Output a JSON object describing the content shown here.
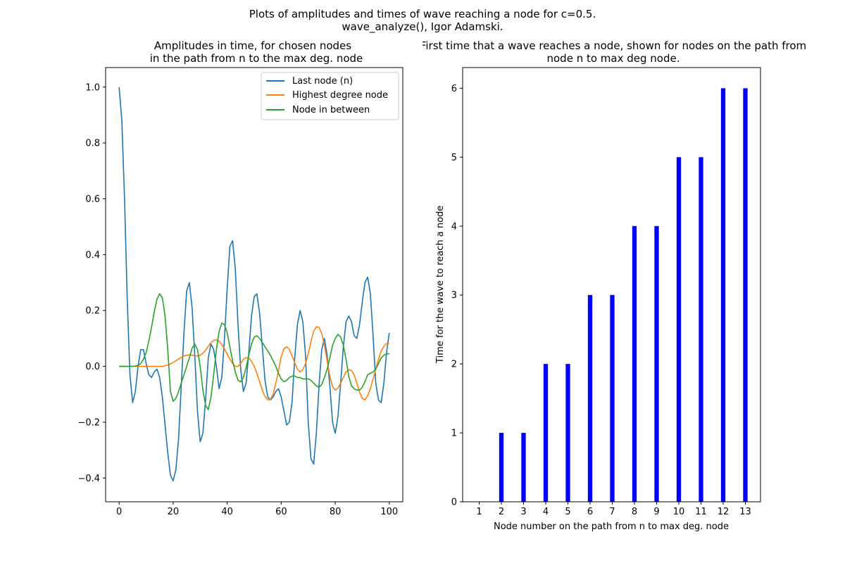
{
  "figure": {
    "suptitle_line1": "Plots of amplitudes and times of wave reaching a node for c=0.5.",
    "suptitle_line2": "wave_analyze(), Igor Adamski."
  },
  "chart_data": [
    {
      "type": "line",
      "title_line1": "Amplitudes in time, for chosen nodes",
      "title_line2": "in the path from n to the max deg. node",
      "xlabel": "",
      "ylabel": "",
      "xlim": [
        -5,
        105
      ],
      "ylim": [
        -0.485,
        1.07
      ],
      "xticks": [
        0,
        20,
        40,
        60,
        80,
        100
      ],
      "yticks": [
        -0.4,
        -0.2,
        0.0,
        0.2,
        0.4,
        0.6,
        0.8,
        1.0
      ],
      "ytick_labels": [
        "−0.4",
        "−0.2",
        "0.0",
        "0.2",
        "0.4",
        "0.6",
        "0.8",
        "1.0"
      ],
      "legend_position": "top-right",
      "series": [
        {
          "name": "Last node (n)",
          "color": "#1f77b4",
          "x": [
            0,
            1,
            2,
            3,
            4,
            5,
            6,
            7,
            8,
            9,
            10,
            11,
            12,
            13,
            14,
            15,
            16,
            17,
            18,
            19,
            20,
            21,
            22,
            23,
            24,
            25,
            26,
            27,
            28,
            29,
            30,
            31,
            32,
            33,
            34,
            35,
            36,
            37,
            38,
            39,
            40,
            41,
            42,
            43,
            44,
            45,
            46,
            47,
            48,
            49,
            50,
            51,
            52,
            53,
            54,
            55,
            56,
            57,
            58,
            59,
            60,
            61,
            62,
            63,
            64,
            65,
            66,
            67,
            68,
            69,
            70,
            71,
            72,
            73,
            74,
            75,
            76,
            77,
            78,
            79,
            80,
            81,
            82,
            83,
            84,
            85,
            86,
            87,
            88,
            89,
            90,
            91,
            92,
            93,
            94,
            95,
            96,
            97,
            98,
            99,
            100
          ],
          "values": [
            1.0,
            0.88,
            0.6,
            0.24,
            -0.03,
            -0.13,
            -0.09,
            0.0,
            0.06,
            0.06,
            0.01,
            -0.03,
            -0.04,
            -0.02,
            -0.01,
            -0.04,
            -0.11,
            -0.21,
            -0.31,
            -0.39,
            -0.41,
            -0.37,
            -0.26,
            -0.07,
            0.12,
            0.27,
            0.3,
            0.21,
            0.04,
            -0.16,
            -0.27,
            -0.24,
            -0.12,
            0.03,
            0.08,
            0.06,
            0.0,
            -0.08,
            -0.04,
            0.1,
            0.28,
            0.43,
            0.45,
            0.35,
            0.15,
            -0.01,
            -0.09,
            -0.06,
            0.05,
            0.18,
            0.25,
            0.26,
            0.19,
            0.07,
            -0.05,
            -0.11,
            -0.12,
            -0.11,
            -0.09,
            -0.08,
            -0.11,
            -0.16,
            -0.21,
            -0.2,
            -0.13,
            0.03,
            0.15,
            0.2,
            0.16,
            0.04,
            -0.2,
            -0.33,
            -0.35,
            -0.24,
            -0.07,
            0.06,
            0.1,
            0.04,
            -0.07,
            -0.2,
            -0.24,
            -0.18,
            -0.06,
            0.07,
            0.16,
            0.18,
            0.16,
            0.11,
            0.1,
            0.15,
            0.23,
            0.3,
            0.32,
            0.26,
            0.11,
            -0.06,
            -0.12,
            -0.13,
            -0.06,
            0.05,
            0.12
          ]
        },
        {
          "name": "Highest degree node",
          "color": "#ff7f0e",
          "x": [
            0,
            1,
            2,
            3,
            4,
            5,
            6,
            7,
            8,
            9,
            10,
            11,
            12,
            13,
            14,
            15,
            16,
            17,
            18,
            19,
            20,
            21,
            22,
            23,
            24,
            25,
            26,
            27,
            28,
            29,
            30,
            31,
            32,
            33,
            34,
            35,
            36,
            37,
            38,
            39,
            40,
            41,
            42,
            43,
            44,
            45,
            46,
            47,
            48,
            49,
            50,
            51,
            52,
            53,
            54,
            55,
            56,
            57,
            58,
            59,
            60,
            61,
            62,
            63,
            64,
            65,
            66,
            67,
            68,
            69,
            70,
            71,
            72,
            73,
            74,
            75,
            76,
            77,
            78,
            79,
            80,
            81,
            82,
            83,
            84,
            85,
            86,
            87,
            88,
            89,
            90,
            91,
            92,
            93,
            94,
            95,
            96,
            97,
            98,
            99,
            100
          ],
          "values": [
            0.0,
            0.0,
            0.0,
            0.0,
            0.0,
            0.0,
            0.0,
            0.0,
            0.0,
            0.0,
            0.0,
            0.0,
            0.0,
            0.0,
            0.0,
            0.0,
            0.0,
            0.002,
            0.005,
            0.009,
            0.014,
            0.02,
            0.026,
            0.032,
            0.037,
            0.04,
            0.041,
            0.04,
            0.038,
            0.037,
            0.04,
            0.047,
            0.058,
            0.072,
            0.085,
            0.093,
            0.095,
            0.09,
            0.078,
            0.062,
            0.044,
            0.026,
            0.01,
            0.0,
            0.0,
            0.01,
            0.025,
            0.032,
            0.03,
            0.018,
            0.0,
            -0.025,
            -0.055,
            -0.085,
            -0.108,
            -0.12,
            -0.118,
            -0.1,
            -0.06,
            -0.015,
            0.035,
            0.063,
            0.07,
            0.06,
            0.038,
            0.013,
            -0.01,
            -0.02,
            -0.012,
            0.01,
            0.045,
            0.088,
            0.125,
            0.142,
            0.14,
            0.118,
            0.075,
            0.02,
            -0.035,
            -0.072,
            -0.085,
            -0.078,
            -0.06,
            -0.04,
            -0.02,
            -0.012,
            -0.015,
            -0.03,
            -0.06,
            -0.092,
            -0.115,
            -0.12,
            -0.105,
            -0.08,
            -0.045,
            -0.01,
            0.025,
            0.055,
            0.072,
            0.082,
            0.082
          ]
        },
        {
          "name": "Node in between",
          "color": "#2ca02c",
          "x": [
            0,
            1,
            2,
            3,
            4,
            5,
            6,
            7,
            8,
            9,
            10,
            11,
            12,
            13,
            14,
            15,
            16,
            17,
            18,
            19,
            20,
            21,
            22,
            23,
            24,
            25,
            26,
            27,
            28,
            29,
            30,
            31,
            32,
            33,
            34,
            35,
            36,
            37,
            38,
            39,
            40,
            41,
            42,
            43,
            44,
            45,
            46,
            47,
            48,
            49,
            50,
            51,
            52,
            53,
            54,
            55,
            56,
            57,
            58,
            59,
            60,
            61,
            62,
            63,
            64,
            65,
            66,
            67,
            68,
            69,
            70,
            71,
            72,
            73,
            74,
            75,
            76,
            77,
            78,
            79,
            80,
            81,
            82,
            83,
            84,
            85,
            86,
            87,
            88,
            89,
            90,
            91,
            92,
            93,
            94,
            95,
            96,
            97,
            98,
            99,
            100
          ],
          "values": [
            0.0,
            0.0,
            0.0,
            0.0,
            0.0,
            0.0,
            0.001,
            0.003,
            0.01,
            0.025,
            0.05,
            0.09,
            0.14,
            0.195,
            0.24,
            0.26,
            0.245,
            0.18,
            0.06,
            -0.09,
            -0.125,
            -0.115,
            -0.09,
            -0.06,
            -0.03,
            0.0,
            0.03,
            0.065,
            0.08,
            0.06,
            0.0,
            -0.085,
            -0.14,
            -0.155,
            -0.11,
            -0.03,
            0.06,
            0.125,
            0.155,
            0.15,
            0.12,
            0.07,
            0.02,
            -0.02,
            -0.05,
            -0.055,
            -0.04,
            -0.005,
            0.04,
            0.08,
            0.105,
            0.11,
            0.1,
            0.085,
            0.07,
            0.055,
            0.04,
            0.02,
            0.0,
            -0.025,
            -0.045,
            -0.055,
            -0.05,
            -0.04,
            -0.035,
            -0.035,
            -0.04,
            -0.04,
            -0.045,
            -0.045,
            -0.045,
            -0.05,
            -0.06,
            -0.07,
            -0.075,
            -0.065,
            -0.04,
            -0.01,
            0.03,
            0.075,
            0.1,
            0.115,
            0.105,
            0.075,
            0.025,
            -0.035,
            -0.07,
            -0.08,
            -0.085,
            -0.085,
            -0.075,
            -0.055,
            -0.03,
            -0.025,
            -0.02,
            -0.01,
            0.01,
            0.03,
            0.04,
            0.045,
            0.045
          ]
        }
      ]
    },
    {
      "type": "bar",
      "title_line1": "First time that a wave reaches a node, shown for nodes on the path from",
      "title_line2": "node n to max deg node.",
      "xlabel": "Node number on the path from n to max deg. node",
      "ylabel": "Time for the wave to reach a node",
      "categories": [
        "1",
        "2",
        "3",
        "4",
        "5",
        "6",
        "7",
        "8",
        "9",
        "10",
        "11",
        "12",
        "13"
      ],
      "values": [
        0,
        1,
        1,
        2,
        2,
        3,
        3,
        4,
        4,
        5,
        5,
        6,
        6
      ],
      "ylim": [
        0,
        6.3
      ],
      "yticks": [
        0,
        1,
        2,
        3,
        4,
        5,
        6
      ],
      "bar_color": "#0000ff"
    }
  ]
}
